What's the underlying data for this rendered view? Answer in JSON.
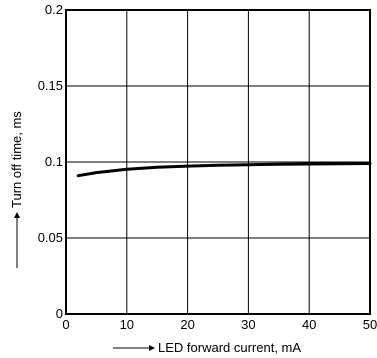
{
  "chart_data": {
    "type": "line",
    "title": "",
    "xlabel": "LED forward current, mA",
    "ylabel": "Turn off time, ms",
    "xlim": [
      0,
      50
    ],
    "ylim": [
      0,
      0.2
    ],
    "x_ticks": [
      {
        "value": 0,
        "label": "0"
      },
      {
        "value": 10,
        "label": "10"
      },
      {
        "value": 20,
        "label": "20"
      },
      {
        "value": 30,
        "label": "30"
      },
      {
        "value": 40,
        "label": "40"
      },
      {
        "value": 50,
        "label": "50"
      }
    ],
    "y_ticks": [
      {
        "value": 0,
        "label": "0"
      },
      {
        "value": 0.05,
        "label": "0.05"
      },
      {
        "value": 0.1,
        "label": "0.1"
      },
      {
        "value": 0.15,
        "label": "0.15"
      },
      {
        "value": 0.2,
        "label": "0.2"
      }
    ],
    "grid": true,
    "series": [
      {
        "x": [
          2,
          5,
          10,
          15,
          20,
          25,
          30,
          35,
          40,
          45,
          50
        ],
        "y": [
          0.091,
          0.093,
          0.0952,
          0.0965,
          0.0973,
          0.0978,
          0.0982,
          0.0985,
          0.0987,
          0.0989,
          0.099
        ]
      }
    ],
    "colors": {
      "line": "#000000",
      "grid": "#000000",
      "frame": "#000000"
    }
  }
}
